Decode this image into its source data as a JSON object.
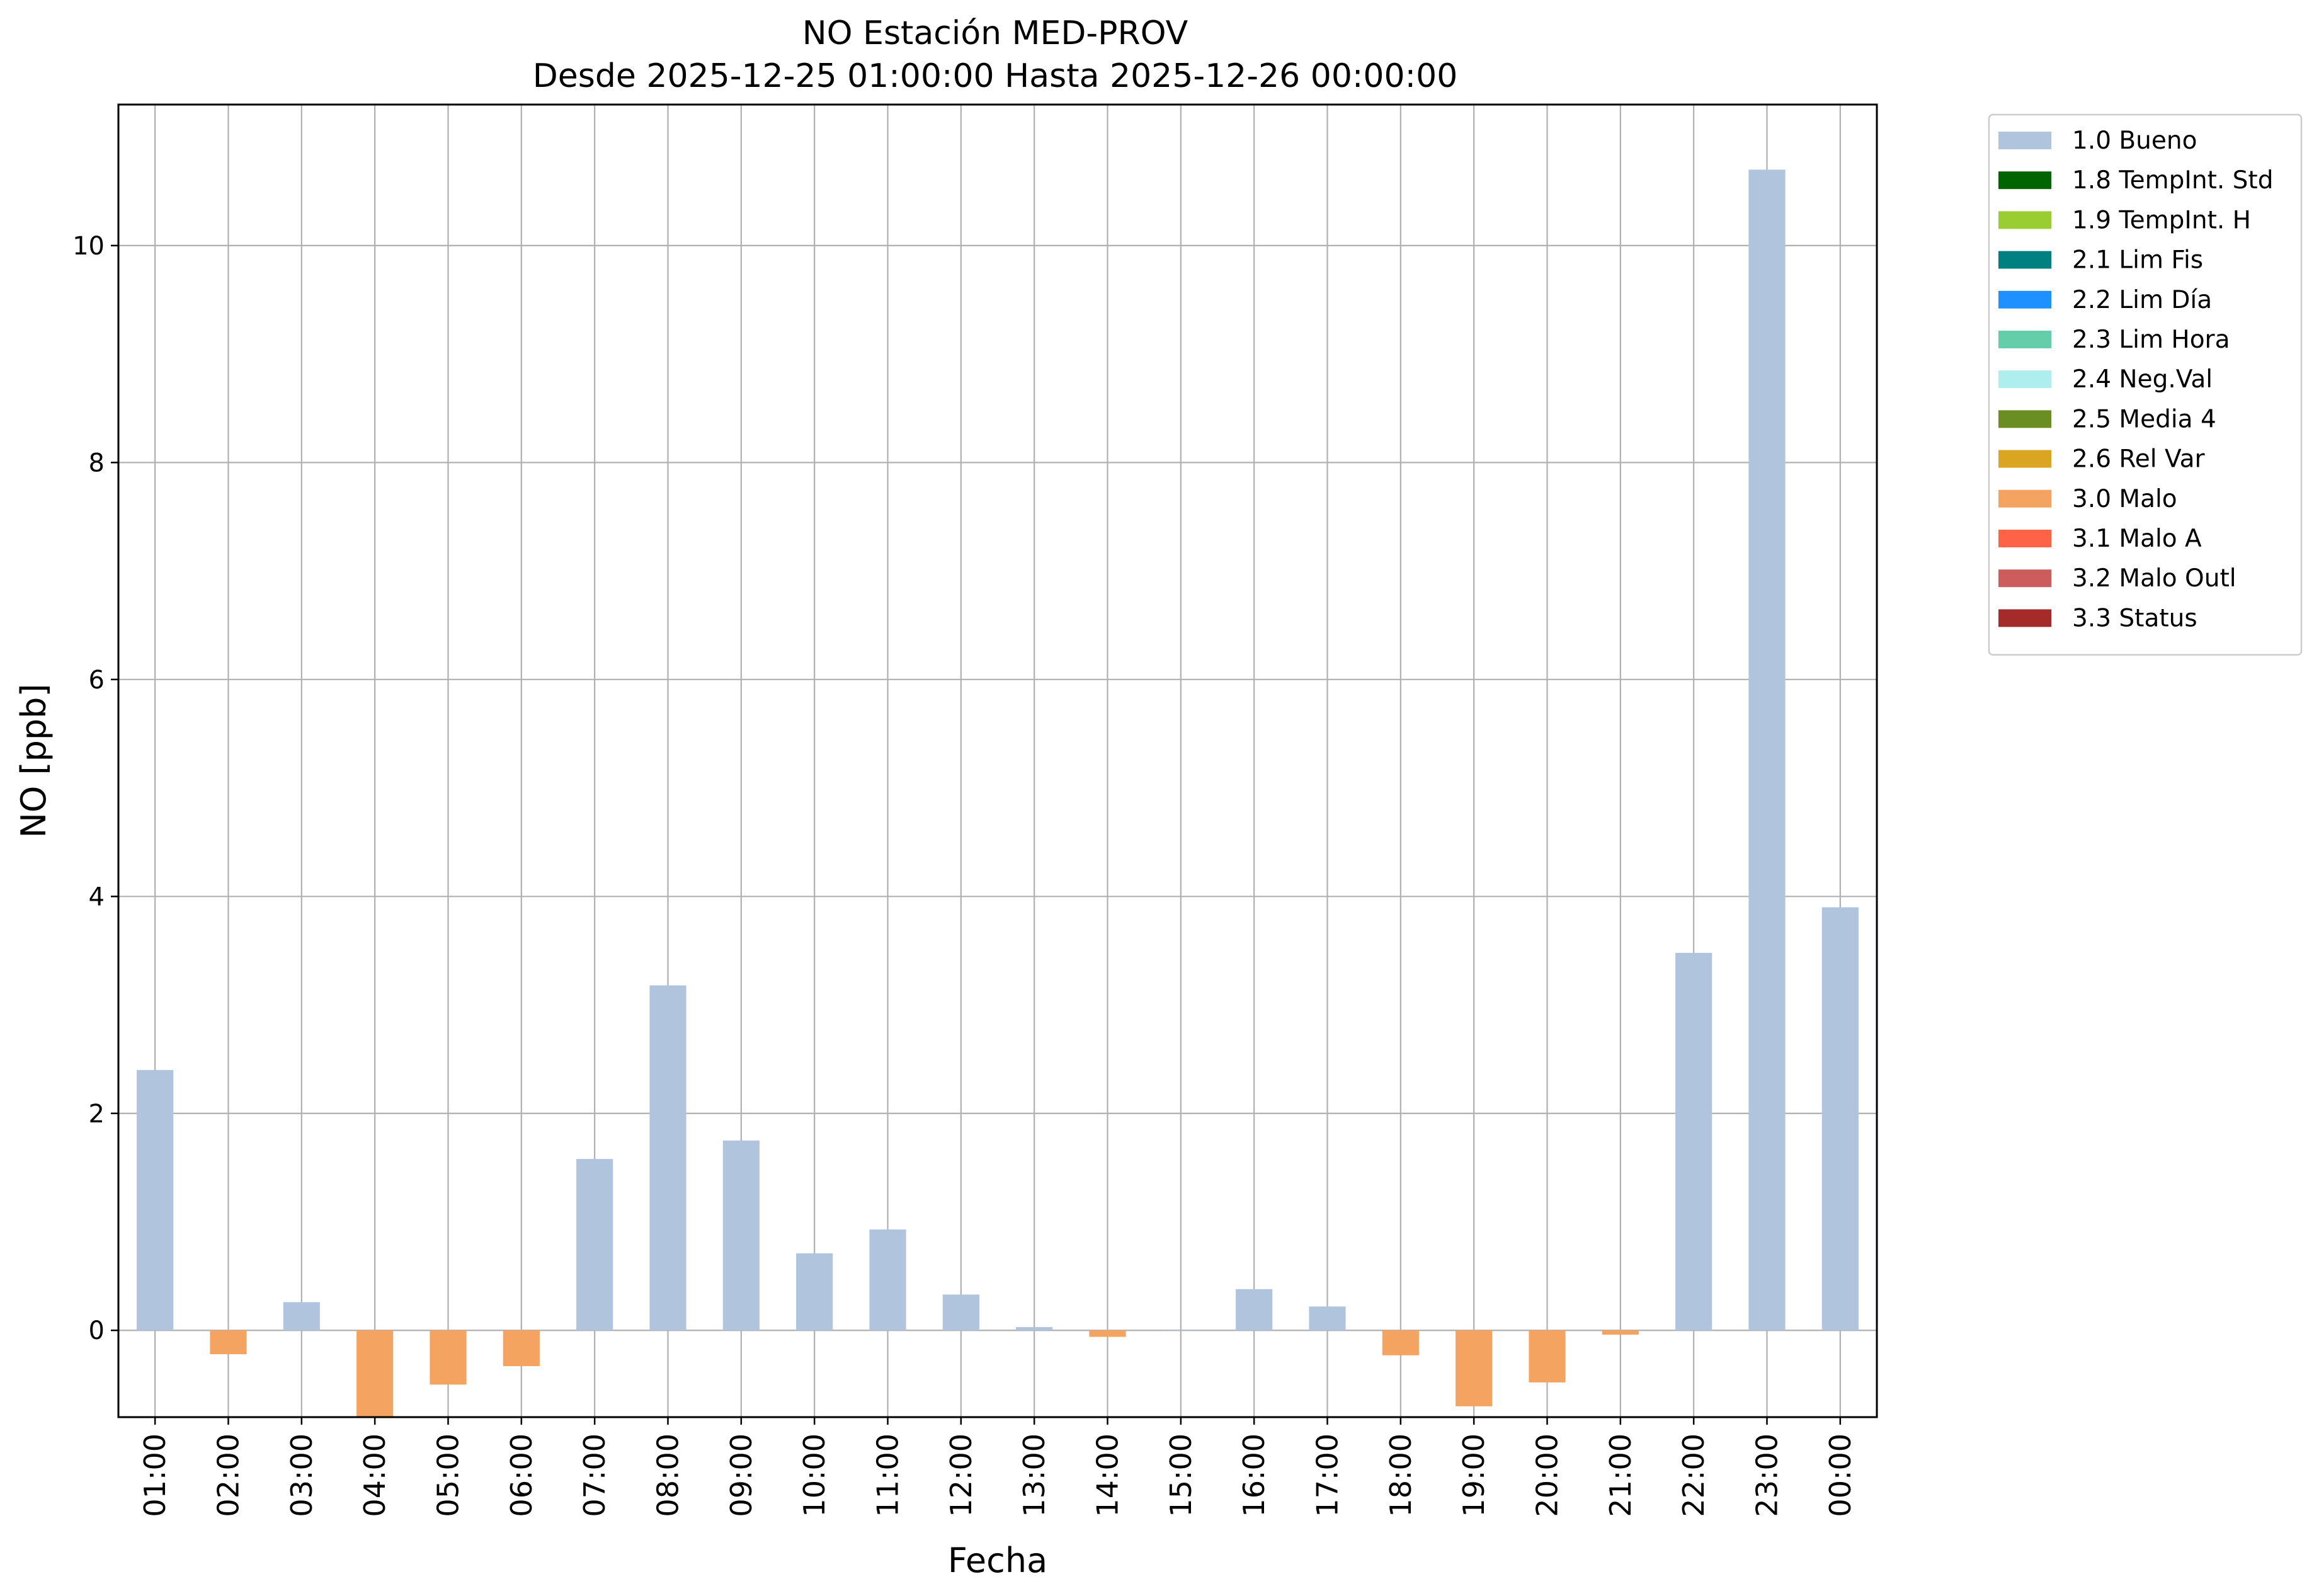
{
  "chart_data": {
    "type": "bar",
    "title": "NO Estación MED-PROV",
    "subtitle": "Desde 2025-12-25 01:00:00 Hasta 2025-12-26 00:00:00",
    "xlabel": "Fecha",
    "ylabel": "NO [ppb]",
    "ylim": [
      -0.8,
      11.3
    ],
    "yticks": [
      0,
      2,
      4,
      6,
      8,
      10
    ],
    "grid": true,
    "legend_position": "outside-top-right",
    "categories": [
      "01:00",
      "02:00",
      "03:00",
      "04:00",
      "05:00",
      "06:00",
      "07:00",
      "08:00",
      "09:00",
      "10:00",
      "11:00",
      "12:00",
      "13:00",
      "14:00",
      "15:00",
      "16:00",
      "17:00",
      "18:00",
      "19:00",
      "20:00",
      "21:00",
      "22:00",
      "23:00",
      "00:00"
    ],
    "values": [
      2.4,
      -0.22,
      0.26,
      -0.8,
      -0.5,
      -0.33,
      1.58,
      3.18,
      1.75,
      0.71,
      0.93,
      0.33,
      0.03,
      -0.06,
      0,
      0.38,
      0.22,
      -0.23,
      -0.7,
      -0.48,
      -0.04,
      3.48,
      10.7,
      3.9
    ],
    "flags": [
      "1.0 Bueno",
      "3.0 Malo",
      "1.0 Bueno",
      "3.0 Malo",
      "3.0 Malo",
      "3.0 Malo",
      "1.0 Bueno",
      "1.0 Bueno",
      "1.0 Bueno",
      "1.0 Bueno",
      "1.0 Bueno",
      "1.0 Bueno",
      "1.0 Bueno",
      "3.0 Malo",
      "1.0 Bueno",
      "1.0 Bueno",
      "1.0 Bueno",
      "3.0 Malo",
      "3.0 Malo",
      "3.0 Malo",
      "3.0 Malo",
      "1.0 Bueno",
      "1.0 Bueno",
      "1.0 Bueno"
    ],
    "legend": [
      {
        "name": "1.0 Bueno",
        "color": "#b0c4de"
      },
      {
        "name": "1.8 TempInt. Std",
        "color": "#006400"
      },
      {
        "name": "1.9 TempInt. H",
        "color": "#9acd32"
      },
      {
        "name": "2.1 Lim Fis",
        "color": "#008080"
      },
      {
        "name": "2.2 Lim Día",
        "color": "#1e90ff"
      },
      {
        "name": "2.3 Lim Hora",
        "color": "#66cdaa"
      },
      {
        "name": "2.4 Neg.Val",
        "color": "#afeeee"
      },
      {
        "name": "2.5 Media 4",
        "color": "#6b8e23"
      },
      {
        "name": "2.6 Rel Var",
        "color": "#daa520"
      },
      {
        "name": "3.0 Malo",
        "color": "#f4a460"
      },
      {
        "name": "3.1 Malo A",
        "color": "#ff6347"
      },
      {
        "name": "3.2 Malo Outl",
        "color": "#cd5c5c"
      },
      {
        "name": "3.3 Status",
        "color": "#a52a2a"
      }
    ]
  }
}
